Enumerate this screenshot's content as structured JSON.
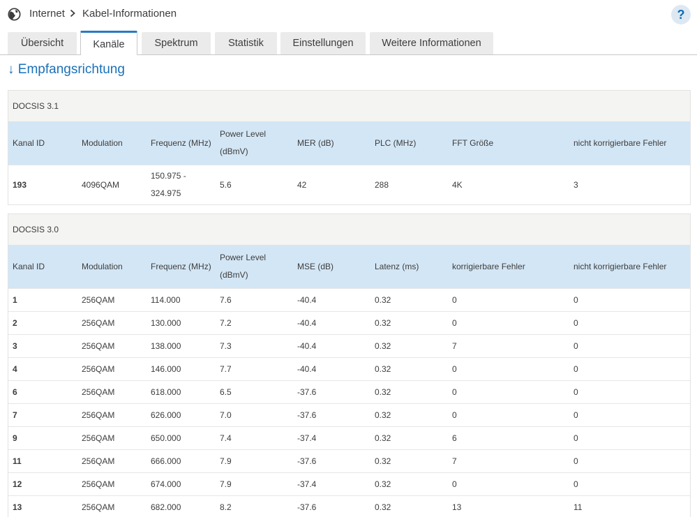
{
  "header": {
    "breadcrumb_root": "Internet",
    "breadcrumb_current": "Kabel-Informationen",
    "help_label": "?"
  },
  "tabs": [
    {
      "label": "Übersicht",
      "active": false
    },
    {
      "label": "Kanäle",
      "active": true
    },
    {
      "label": "Spektrum",
      "active": false
    },
    {
      "label": "Statistik",
      "active": false
    },
    {
      "label": "Einstellungen",
      "active": false
    },
    {
      "label": "Weitere Informationen",
      "active": false
    }
  ],
  "section_title": "↓ Empfangsrichtung",
  "docsis31": {
    "title": "DOCSIS 3.1",
    "headers": [
      "Kanal ID",
      "Modulation",
      "Frequenz (MHz)",
      "Power Level (dBmV)",
      "MER (dB)",
      "PLC (MHz)",
      "FFT Größe",
      "nicht korrigierbare Fehler"
    ],
    "rows": [
      [
        "193",
        "4096QAM",
        "150.975 - 324.975",
        "5.6",
        "42",
        "288",
        "4K",
        "3"
      ]
    ]
  },
  "docsis30": {
    "title": "DOCSIS 3.0",
    "headers": [
      "Kanal ID",
      "Modulation",
      "Frequenz (MHz)",
      "Power Level (dBmV)",
      "MSE (dB)",
      "Latenz (ms)",
      "korrigierbare Fehler",
      "nicht korrigierbare Fehler"
    ],
    "rows": [
      [
        "1",
        "256QAM",
        "114.000",
        "7.6",
        "-40.4",
        "0.32",
        "0",
        "0"
      ],
      [
        "2",
        "256QAM",
        "130.000",
        "7.2",
        "-40.4",
        "0.32",
        "0",
        "0"
      ],
      [
        "3",
        "256QAM",
        "138.000",
        "7.3",
        "-40.4",
        "0.32",
        "7",
        "0"
      ],
      [
        "4",
        "256QAM",
        "146.000",
        "7.7",
        "-40.4",
        "0.32",
        "0",
        "0"
      ],
      [
        "6",
        "256QAM",
        "618.000",
        "6.5",
        "-37.6",
        "0.32",
        "0",
        "0"
      ],
      [
        "7",
        "256QAM",
        "626.000",
        "7.0",
        "-37.6",
        "0.32",
        "0",
        "0"
      ],
      [
        "9",
        "256QAM",
        "650.000",
        "7.4",
        "-37.4",
        "0.32",
        "6",
        "0"
      ],
      [
        "11",
        "256QAM",
        "666.000",
        "7.9",
        "-37.6",
        "0.32",
        "7",
        "0"
      ],
      [
        "12",
        "256QAM",
        "674.000",
        "7.9",
        "-37.4",
        "0.32",
        "0",
        "0"
      ],
      [
        "13",
        "256QAM",
        "682.000",
        "8.2",
        "-37.6",
        "0.32",
        "13",
        "11"
      ]
    ]
  },
  "colors": {
    "accent": "#1a70b8",
    "table_header_bg": "#d3e6f5",
    "panel_head_bg": "#f4f4f2"
  }
}
